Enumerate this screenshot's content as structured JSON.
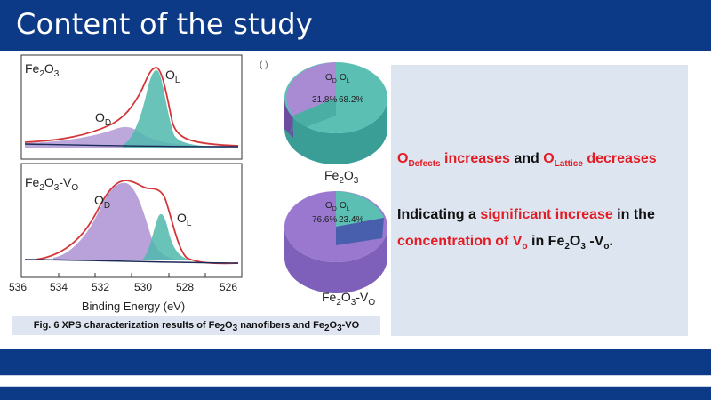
{
  "slide": {
    "title": "Content of the study",
    "caption_prefix": "Fig. 6 XPS characterization results of Fe",
    "caption_sub1": "2",
    "caption_mid1": "O",
    "caption_sub2": "3",
    "caption_mid2": " nanofibers and Fe",
    "caption_sub3": "2",
    "caption_mid3": "O",
    "caption_sub4": "3",
    "caption_suffix": "-VO"
  },
  "colors": {
    "brand": "#0d3a86",
    "accent_red": "#e31b23",
    "panel_bg": "#dde5f0"
  },
  "xps": {
    "top_label_main": "Fe",
    "top_label_sub1": "2",
    "top_label_mid": "O",
    "top_label_sub2": "3",
    "bottom_label_main": "Fe",
    "bottom_label_sub1": "2",
    "bottom_label_mid": "O",
    "bottom_label_sub2": "3",
    "bottom_label_dash": "-V",
    "bottom_label_sub3": "O",
    "peak_od_main": "O",
    "peak_od_sub": "D",
    "peak_ol_main": "O",
    "peak_ol_sub": "L",
    "x_ticks": [
      "536",
      "534",
      "532",
      "530",
      "528",
      "526"
    ],
    "x_axis_label": "Binding Energy (eV)",
    "partial_label": "( )"
  },
  "pies": {
    "top": {
      "od_pct": "31.8%",
      "ol_pct": "68.2%",
      "label_main": "Fe",
      "label_sub1": "2",
      "label_mid": "O",
      "label_sub2": "3"
    },
    "bottom": {
      "od_pct": "76.6%",
      "ol_pct": "23.4%",
      "label_main": "Fe",
      "label_sub1": "2",
      "label_mid": "O",
      "label_sub2": "3",
      "label_dash": "-V",
      "label_sub3": "O"
    },
    "legend_od_main": "O",
    "legend_od_sub": "D",
    "legend_ol_main": "O",
    "legend_ol_sub": "L"
  },
  "findings": {
    "l1_o1": "O",
    "l1_sub1": "Defects",
    "l1_mid": " increases",
    "l1_and": " and ",
    "l1_o2": "O",
    "l1_sub2": "Lattice",
    "l1_end": " decreases",
    "l2_start": "Indicating a ",
    "l2_red": "significant increase",
    "l2_end": " in the",
    "l3_red": "concentration of V",
    "l3_red_sub": "o",
    "l3_mid": " in Fe",
    "l3_sub1": "2",
    "l3_o": "O",
    "l3_sub2": "3",
    "l3_dash": " -V",
    "l3_sub3": "o",
    "l3_end": "."
  }
}
